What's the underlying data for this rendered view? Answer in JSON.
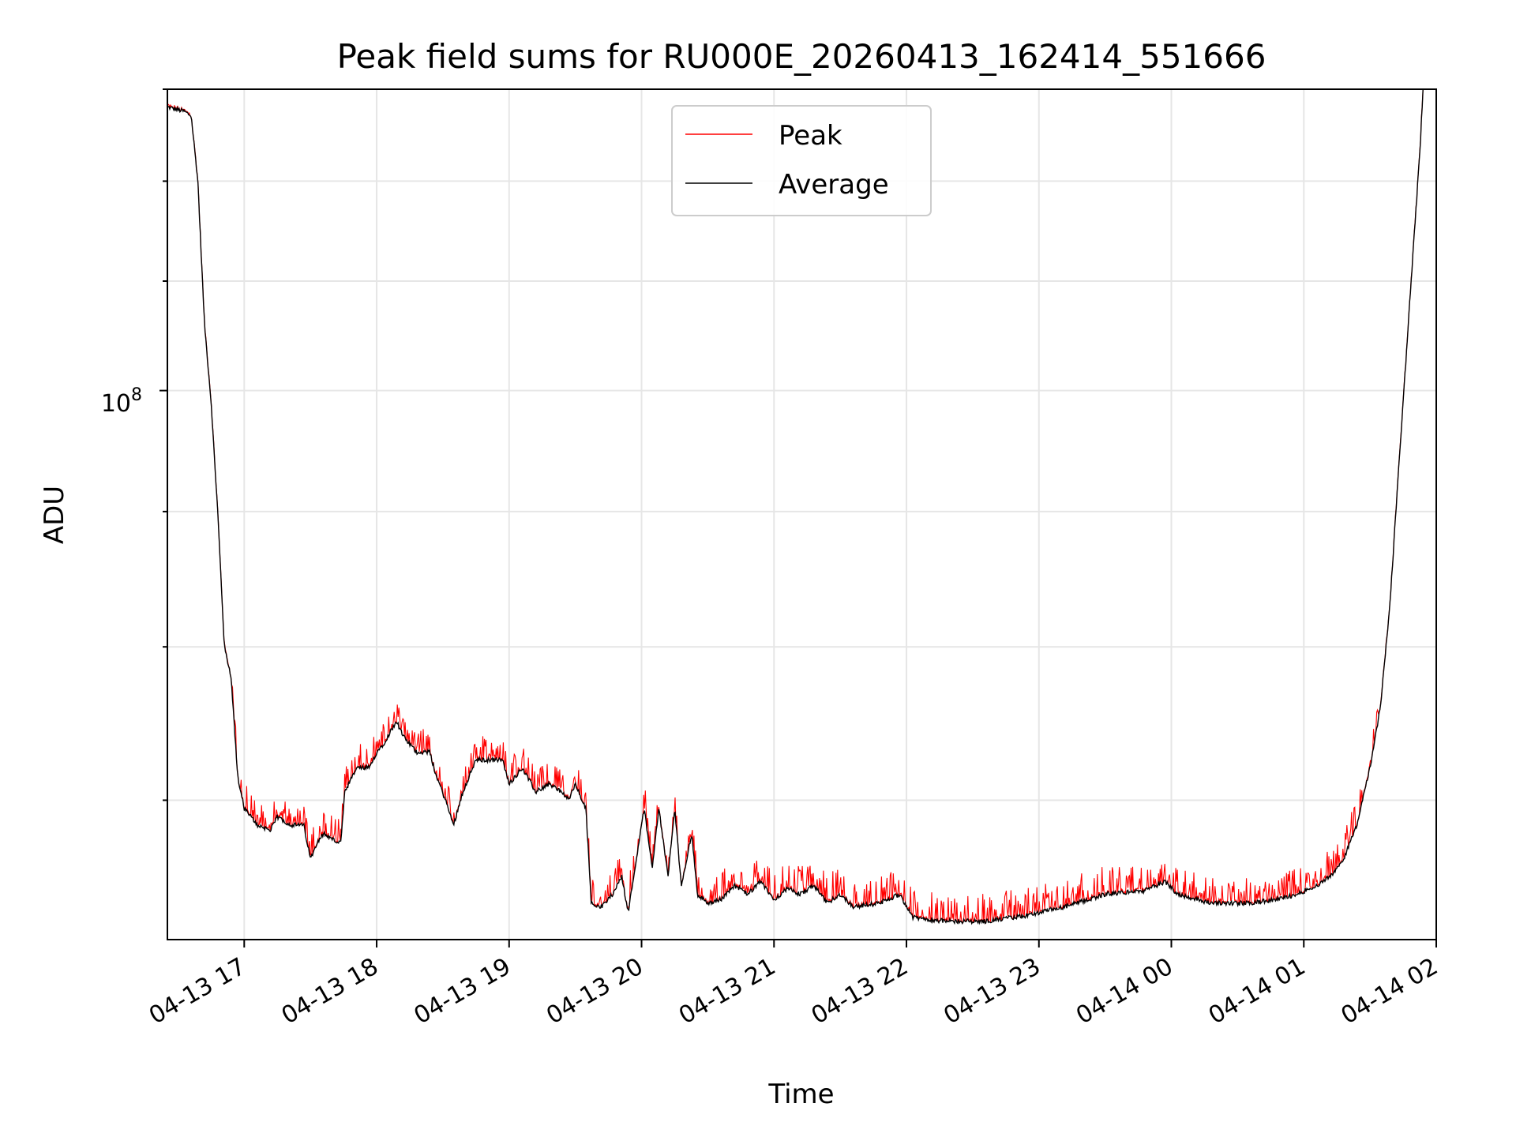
{
  "chart_data": {
    "type": "line",
    "title": "Peak field sums for RU000E_20260413_162414_551666",
    "xlabel": "Time",
    "ylabel": "ADU",
    "yscale": "log",
    "grid": true,
    "legend_position": "top-center",
    "x_range_hours": [
      16.42,
      26.0
    ],
    "ylim": [
      62000000.0,
      130000000.0
    ],
    "y_tick_label": {
      "base": "10",
      "exponent": "8",
      "value": 100000000.0
    },
    "y_minor_ticks": [
      70000000.0,
      80000000.0,
      90000000.0,
      110000000.0,
      120000000.0,
      130000000.0
    ],
    "x_ticks": [
      {
        "h": 17,
        "label": "04-13 17"
      },
      {
        "h": 18,
        "label": "04-13 18"
      },
      {
        "h": 19,
        "label": "04-13 19"
      },
      {
        "h": 20,
        "label": "04-13 20"
      },
      {
        "h": 21,
        "label": "04-13 21"
      },
      {
        "h": 22,
        "label": "04-13 22"
      },
      {
        "h": 23,
        "label": "04-13 23"
      },
      {
        "h": 24,
        "label": "04-14 00"
      },
      {
        "h": 25,
        "label": "04-14 01"
      },
      {
        "h": 26,
        "label": "04-14 02"
      }
    ],
    "series": [
      {
        "name": "Peak",
        "color": "#ff0000",
        "peak_spikes_fraction": 0.35,
        "peak_spike_max": 1500000.0
      },
      {
        "name": "Average",
        "color": "#000000"
      }
    ],
    "average_curve": [
      [
        16.42,
        128000000.0
      ],
      [
        16.55,
        127500000.0
      ],
      [
        16.6,
        127000000.0
      ],
      [
        16.65,
        120000000.0
      ],
      [
        16.7,
        106000000.0
      ],
      [
        16.75,
        99000000.0
      ],
      [
        16.8,
        90000000.0
      ],
      [
        16.85,
        80000000.0
      ],
      [
        16.9,
        78000000.0
      ],
      [
        16.95,
        71500000.0
      ],
      [
        17.0,
        69500000.0
      ],
      [
        17.1,
        68500000.0
      ],
      [
        17.2,
        68200000.0
      ],
      [
        17.25,
        69000000.0
      ],
      [
        17.35,
        68500000.0
      ],
      [
        17.45,
        68500000.0
      ],
      [
        17.5,
        66500000.0
      ],
      [
        17.55,
        67500000.0
      ],
      [
        17.6,
        68000000.0
      ],
      [
        17.7,
        67500000.0
      ],
      [
        17.73,
        67500000.0
      ],
      [
        17.76,
        70500000.0
      ],
      [
        17.85,
        72000000.0
      ],
      [
        17.95,
        72000000.0
      ],
      [
        18.0,
        73000000.0
      ],
      [
        18.05,
        73500000.0
      ],
      [
        18.15,
        75000000.0
      ],
      [
        18.2,
        74000000.0
      ],
      [
        18.3,
        73000000.0
      ],
      [
        18.4,
        73000000.0
      ],
      [
        18.45,
        71500000.0
      ],
      [
        18.52,
        70000000.0
      ],
      [
        18.58,
        68500000.0
      ],
      [
        18.65,
        70500000.0
      ],
      [
        18.75,
        72500000.0
      ],
      [
        18.9,
        72500000.0
      ],
      [
        18.95,
        72500000.0
      ],
      [
        19.0,
        71000000.0
      ],
      [
        19.1,
        72000000.0
      ],
      [
        19.2,
        70500000.0
      ],
      [
        19.3,
        71000000.0
      ],
      [
        19.4,
        70500000.0
      ],
      [
        19.45,
        70000000.0
      ],
      [
        19.5,
        71000000.0
      ],
      [
        19.55,
        70000000.0
      ],
      [
        19.58,
        69500000.0
      ],
      [
        19.62,
        64000000.0
      ],
      [
        19.7,
        63800000.0
      ],
      [
        19.78,
        64500000.0
      ],
      [
        19.85,
        65500000.0
      ],
      [
        19.9,
        63500000.0
      ],
      [
        19.95,
        66000000.0
      ],
      [
        20.02,
        69500000.0
      ],
      [
        20.08,
        66000000.0
      ],
      [
        20.13,
        69500000.0
      ],
      [
        20.2,
        65500000.0
      ],
      [
        20.25,
        69500000.0
      ],
      [
        20.3,
        65000000.0
      ],
      [
        20.38,
        68000000.0
      ],
      [
        20.42,
        64500000.0
      ],
      [
        20.5,
        64000000.0
      ],
      [
        20.6,
        64200000.0
      ],
      [
        20.7,
        65000000.0
      ],
      [
        20.8,
        64500000.0
      ],
      [
        20.9,
        65200000.0
      ],
      [
        21.0,
        64200000.0
      ],
      [
        21.1,
        64800000.0
      ],
      [
        21.2,
        64500000.0
      ],
      [
        21.3,
        65000000.0
      ],
      [
        21.4,
        64000000.0
      ],
      [
        21.5,
        64500000.0
      ],
      [
        21.6,
        63800000.0
      ],
      [
        21.8,
        64000000.0
      ],
      [
        21.95,
        64500000.0
      ],
      [
        22.05,
        63200000.0
      ],
      [
        22.3,
        63000000.0
      ],
      [
        22.6,
        63000000.0
      ],
      [
        22.9,
        63300000.0
      ],
      [
        23.2,
        63800000.0
      ],
      [
        23.5,
        64500000.0
      ],
      [
        23.8,
        64700000.0
      ],
      [
        23.95,
        65200000.0
      ],
      [
        24.05,
        64500000.0
      ],
      [
        24.3,
        64000000.0
      ],
      [
        24.6,
        64000000.0
      ],
      [
        24.8,
        64200000.0
      ],
      [
        24.95,
        64500000.0
      ],
      [
        25.1,
        65000000.0
      ],
      [
        25.2,
        65500000.0
      ],
      [
        25.3,
        66500000.0
      ],
      [
        25.4,
        68500000.0
      ],
      [
        25.5,
        72000000.0
      ],
      [
        25.58,
        76000000.0
      ],
      [
        25.65,
        83000000.0
      ],
      [
        25.72,
        94000000.0
      ],
      [
        25.8,
        108000000.0
      ],
      [
        25.88,
        124000000.0
      ],
      [
        25.9,
        130000000.0
      ]
    ]
  }
}
